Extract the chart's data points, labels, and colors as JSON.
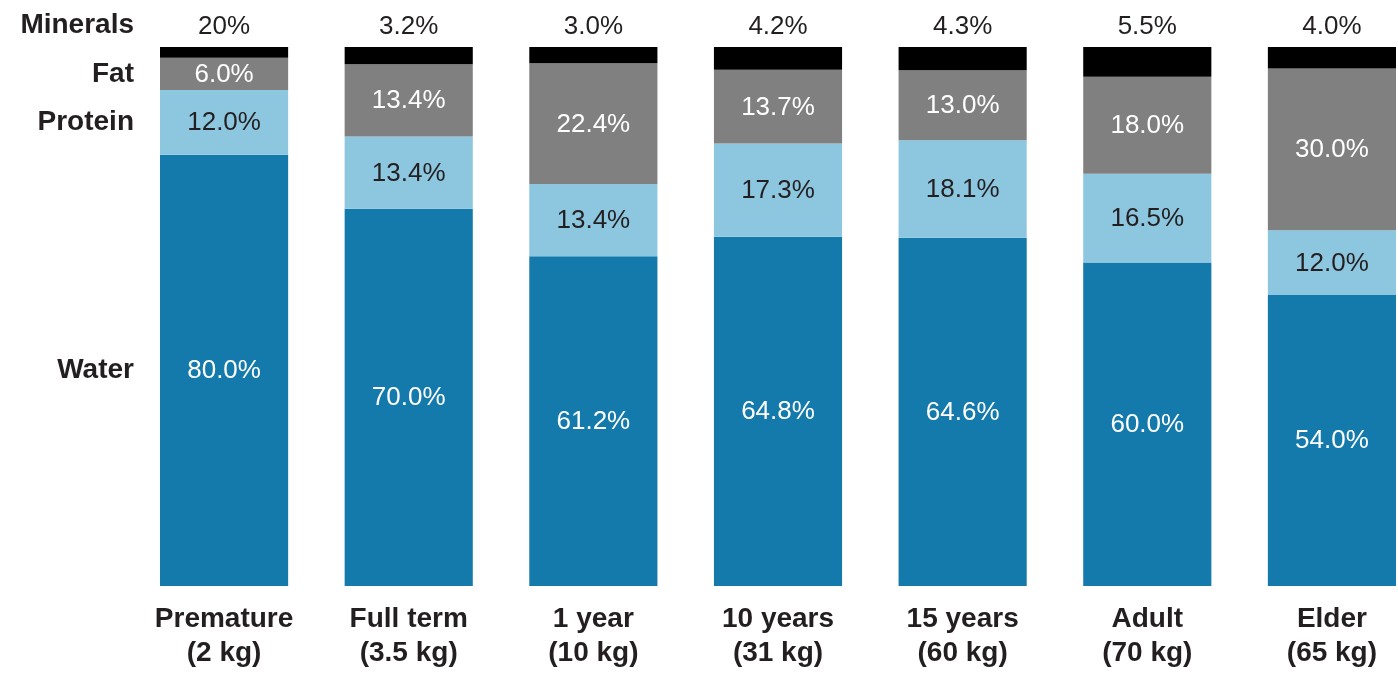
{
  "chart_data": {
    "type": "bar",
    "stacked": true,
    "tick_labels": "x",
    "ylim": [
      0,
      100
    ],
    "categories": [
      "Premature\n(2 kg)",
      "Full term\n(3.5 kg)",
      "1 year\n(10 kg)",
      "10 years\n(31 kg)",
      "15 years\n(60 kg)",
      "Adult\n(70 kg)",
      "Elder\n(65 kg)"
    ],
    "series": [
      {
        "name": "Water",
        "color": "#1479ab",
        "values": [
          80.0,
          70.0,
          61.2,
          64.8,
          64.6,
          60.0,
          54.0
        ],
        "value_labels": [
          "80.0%",
          "70.0%",
          "61.2%",
          "64.8%",
          "64.6%",
          "60.0%",
          "54.0%"
        ]
      },
      {
        "name": "Protein",
        "color": "#8dc6df",
        "values": [
          12.0,
          13.4,
          13.4,
          17.3,
          18.1,
          16.5,
          12.0
        ],
        "value_labels": [
          "12.0%",
          "13.4%",
          "13.4%",
          "17.3%",
          "18.1%",
          "16.5%",
          "12.0%"
        ]
      },
      {
        "name": "Fat",
        "color": "#808080",
        "values": [
          6.0,
          13.4,
          22.4,
          13.7,
          13.0,
          18.0,
          30.0
        ],
        "value_labels": [
          "6.0%",
          "13.4%",
          "22.4%",
          "13.7%",
          "13.0%",
          "18.0%",
          "30.0%"
        ]
      },
      {
        "name": "Minerals",
        "color": "#000000",
        "values": [
          2.0,
          3.2,
          3.0,
          4.2,
          4.3,
          5.5,
          4.0
        ],
        "value_labels": [
          null,
          "3.2%",
          "3.0%",
          "4.2%",
          "4.3%",
          "5.5%",
          "4.0%"
        ]
      }
    ],
    "annotations": [
      {
        "text": "20%",
        "x": "Premature\n(2 kg)",
        "y": 100
      }
    ]
  }
}
